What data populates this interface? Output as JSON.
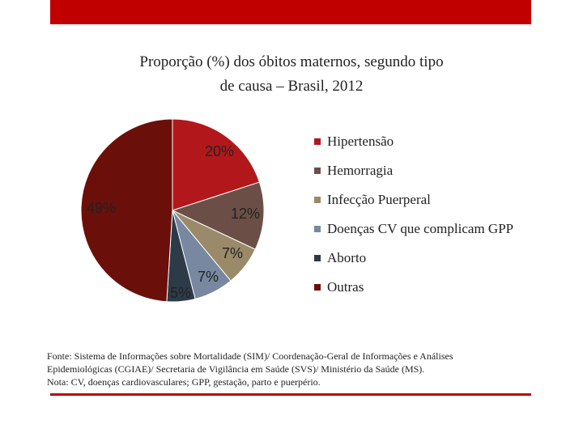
{
  "colors": {
    "accent": "#c00000"
  },
  "chart_data": {
    "type": "pie",
    "title": [
      "Proporção (%) dos óbitos maternos, segundo tipo",
      "de causa – Brasil, 2012"
    ],
    "slices": [
      {
        "name": "Hipertensão",
        "value": 20,
        "label": "20%",
        "color": "#b2181b"
      },
      {
        "name": "Hemorragia",
        "value": 12,
        "label": "12%",
        "color": "#6b4f47"
      },
      {
        "name": "Infecção Puerperal",
        "value": 7,
        "label": "7%",
        "color": "#9a8a6a"
      },
      {
        "name": "Doenças CV que complicam GPP",
        "value": 7,
        "label": "7%",
        "color": "#7888a0"
      },
      {
        "name": "Aborto",
        "value": 5,
        "label": "5%",
        "color": "#2d3b48"
      },
      {
        "name": "Outras",
        "value": 49,
        "label": "49%",
        "color": "#6b0f0a"
      }
    ],
    "legend_position": "right"
  },
  "source_note": [
    "Fonte: Sistema de Informações sobre Mortalidade (SIM)/ Coordenação-Geral de Informações e Análises",
    "Epidemiológicas (CGIAE)/ Secretaria de Vigilância em Saúde (SVS)/ Ministério da Saúde (MS).",
    " Nota: CV, doenças cardiovasculares; GPP, gestação, parto e puerpério."
  ]
}
